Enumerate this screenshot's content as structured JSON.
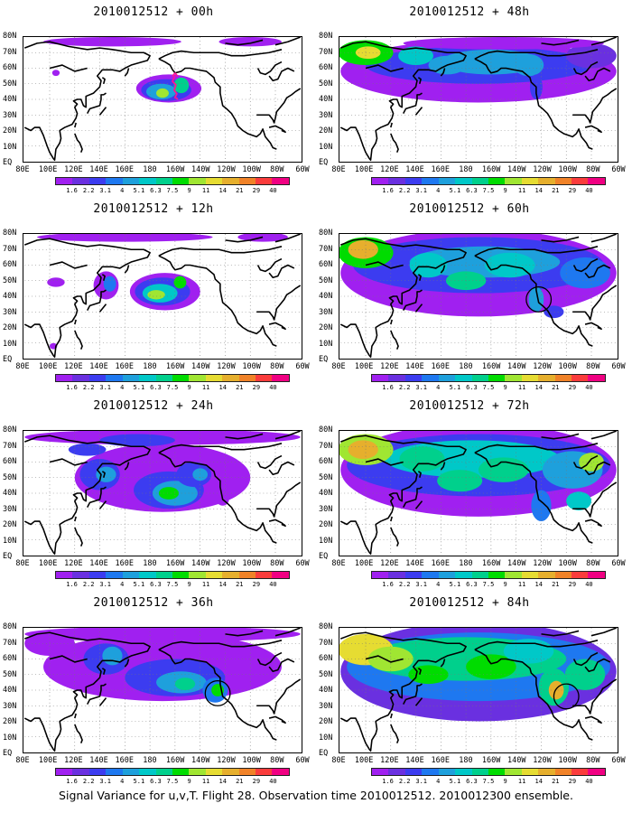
{
  "panels": [
    {
      "title": "2010012512 + 00h",
      "lead": 0
    },
    {
      "title": "2010012512 + 48h",
      "lead": 48
    },
    {
      "title": "2010012512 + 12h",
      "lead": 12
    },
    {
      "title": "2010012512 + 60h",
      "lead": 60
    },
    {
      "title": "2010012512 + 24h",
      "lead": 24
    },
    {
      "title": "2010012512 + 72h",
      "lead": 72
    },
    {
      "title": "2010012512 + 36h",
      "lead": 36
    },
    {
      "title": "2010012512 + 84h",
      "lead": 84
    }
  ],
  "lat_labels": [
    "80N",
    "70N",
    "60N",
    "50N",
    "40N",
    "30N",
    "20N",
    "10N",
    "EQ"
  ],
  "lon_labels": [
    "80E",
    "100E",
    "120E",
    "140E",
    "160E",
    "180",
    "160W",
    "140W",
    "120W",
    "100W",
    "80W",
    "60W"
  ],
  "colorbar": {
    "labels": [
      "1.6",
      "2.2",
      "3.1",
      "4",
      "5.1",
      "6.3",
      "7.5",
      "9",
      "11",
      "14",
      "21",
      "29",
      "40"
    ],
    "colors": [
      "#a020f0",
      "#6a30e0",
      "#3c3cf0",
      "#1e78f0",
      "#1ea0dc",
      "#00c8c8",
      "#00d08c",
      "#00dc00",
      "#a0e632",
      "#e6dc32",
      "#e6af2d",
      "#f08228",
      "#fa3c3c",
      "#f00082"
    ]
  },
  "caption": "Signal Variance for u,v,T. Flight 28. Observation time 2010012512. 2010012300 ensemble.",
  "highlight": {
    "marker_color": "#ff1493",
    "circle_color": "#000000"
  }
}
